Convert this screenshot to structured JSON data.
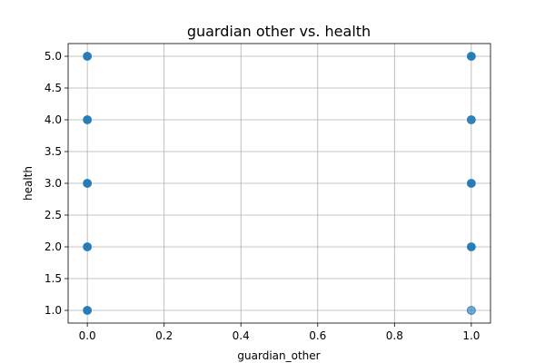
{
  "chart_data": {
    "type": "scatter",
    "title": "guardian other vs. health",
    "xlabel": "guardian_other",
    "ylabel": "health",
    "xlim": [
      -0.05,
      1.05
    ],
    "ylim": [
      0.8,
      5.2
    ],
    "xticks": [
      "0.0",
      "0.2",
      "0.4",
      "0.6",
      "0.8",
      "1.0"
    ],
    "yticks": [
      "1.0",
      "1.5",
      "2.0",
      "2.5",
      "3.0",
      "3.5",
      "4.0",
      "4.5",
      "5.0"
    ],
    "grid": true,
    "point_color": "#1f77b4",
    "points": [
      {
        "x": 0,
        "y": 1,
        "opacity": 0.95
      },
      {
        "x": 0,
        "y": 2,
        "opacity": 0.95
      },
      {
        "x": 0,
        "y": 3,
        "opacity": 0.95
      },
      {
        "x": 0,
        "y": 4,
        "opacity": 0.95
      },
      {
        "x": 0,
        "y": 5,
        "opacity": 0.95
      },
      {
        "x": 1,
        "y": 1,
        "opacity": 0.6
      },
      {
        "x": 1,
        "y": 2,
        "opacity": 0.95
      },
      {
        "x": 1,
        "y": 3,
        "opacity": 0.95
      },
      {
        "x": 1,
        "y": 4,
        "opacity": 0.9
      },
      {
        "x": 1,
        "y": 5,
        "opacity": 0.95
      }
    ]
  }
}
